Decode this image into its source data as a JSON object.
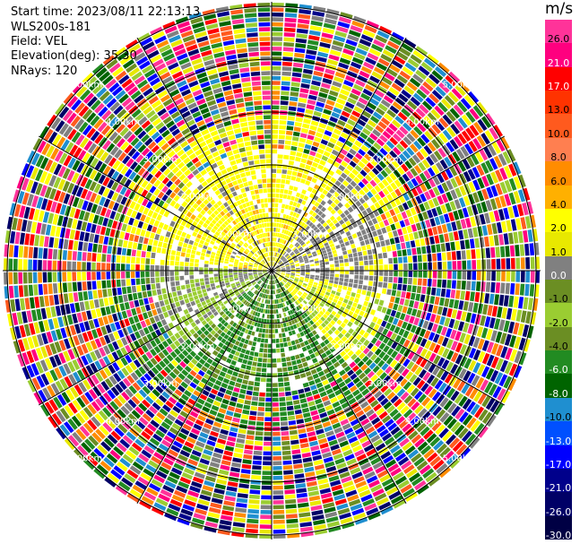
{
  "header": {
    "start_time": "Start time: 2023/08/11 22:13:13",
    "instrument": "WLS200s-181",
    "field": "Field: VEL",
    "elevation": "Elevation(deg): 35.30",
    "nrays": "NRays: 120"
  },
  "colorbar": {
    "unit": "m/s",
    "levels": [
      {
        "value": "26.0",
        "color": "#ff3399"
      },
      {
        "value": "21.0",
        "color": "#ff007f"
      },
      {
        "value": "17.0",
        "color": "#ff0000"
      },
      {
        "value": "13.0",
        "color": "#ff3300"
      },
      {
        "value": "10.0",
        "color": "#ff5a1e"
      },
      {
        "value": "8.0",
        "color": "#ff7f50"
      },
      {
        "value": "6.0",
        "color": "#ff8c00"
      },
      {
        "value": "4.0",
        "color": "#ffb000"
      },
      {
        "value": "2.0",
        "color": "#ffff00"
      },
      {
        "value": "1.0",
        "color": "#e8e800"
      },
      {
        "value": "0.0",
        "color": "#808080"
      },
      {
        "value": "-1.0",
        "color": "#6b8e23"
      },
      {
        "value": "-2.0",
        "color": "#9acd32"
      },
      {
        "value": "-4.0",
        "color": "#6b8e23"
      },
      {
        "value": "-6.0",
        "color": "#228b22"
      },
      {
        "value": "-8.0",
        "color": "#006400"
      },
      {
        "value": "-10.0",
        "color": "#1f8fd0"
      },
      {
        "value": "-13.0",
        "color": "#0050ff"
      },
      {
        "value": "-17.0",
        "color": "#0000ff"
      },
      {
        "value": "-21.0",
        "color": "#00008b"
      },
      {
        "value": "-26.0",
        "color": "#000066"
      },
      {
        "value": "-30.0",
        "color": "#000044"
      }
    ]
  },
  "range_rings": {
    "labels": [
      "1.00km",
      "2.00km",
      "3.00km",
      "4.00km",
      "5.00km"
    ]
  },
  "palette": [
    "#ff3399",
    "#ff007f",
    "#ff0000",
    "#ff5a1e",
    "#ff8c00",
    "#ffff00",
    "#e8e800",
    "#808080",
    "#9acd32",
    "#6b8e23",
    "#228b22",
    "#006400",
    "#1f8fd0",
    "#0000ff",
    "#00008b",
    "#000066"
  ],
  "field_structure": {
    "inner_north": "positive-yellow",
    "inner_northeast": "zero-gray",
    "inner_south": "negative-green",
    "outer": "noise-mixed"
  }
}
